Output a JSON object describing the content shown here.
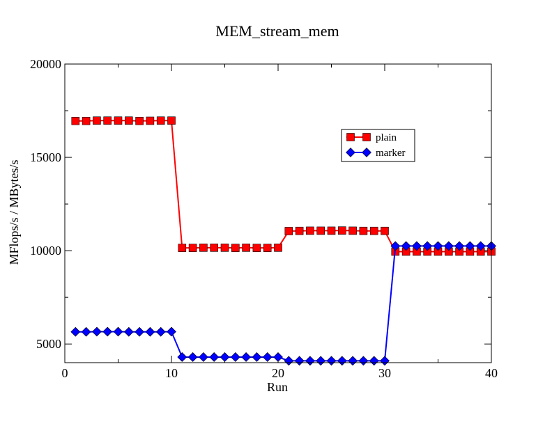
{
  "chart_data": {
    "type": "line",
    "title": "MEM_stream_mem",
    "xlabel": "Run",
    "ylabel": "MFlops/s / MBytes/s",
    "xlim": [
      0,
      40
    ],
    "ylim": [
      4000,
      20000
    ],
    "x_ticks": [
      0,
      10,
      20,
      30,
      40
    ],
    "y_ticks": [
      5000,
      10000,
      15000,
      20000
    ],
    "x_tick_labels": [
      "0",
      "10",
      "20",
      "30",
      "40"
    ],
    "y_tick_labels": [
      "5000",
      "10000",
      "15000",
      "20000"
    ],
    "legend_position": "upper-right-inside",
    "grid": false,
    "x": [
      1,
      2,
      3,
      4,
      5,
      6,
      7,
      8,
      9,
      10,
      11,
      12,
      13,
      14,
      15,
      16,
      17,
      18,
      19,
      20,
      21,
      22,
      23,
      24,
      25,
      26,
      27,
      28,
      29,
      30,
      31,
      32,
      33,
      34,
      35,
      36,
      37,
      38,
      39,
      40
    ],
    "series": [
      {
        "name": "plain",
        "color": "#ff0000",
        "marker": "square",
        "values": [
          16950,
          16950,
          16970,
          16970,
          16970,
          16970,
          16950,
          16960,
          16970,
          16970,
          10150,
          10150,
          10160,
          10160,
          10160,
          10150,
          10160,
          10150,
          10150,
          10160,
          11050,
          11060,
          11070,
          11070,
          11070,
          11080,
          11070,
          11060,
          11060,
          11060,
          9950,
          9950,
          9950,
          9950,
          9950,
          9950,
          9950,
          9950,
          9950,
          9950
        ]
      },
      {
        "name": "marker",
        "color": "#0000ff",
        "marker": "diamond",
        "values": [
          5650,
          5650,
          5660,
          5660,
          5660,
          5650,
          5650,
          5650,
          5650,
          5660,
          4300,
          4300,
          4300,
          4300,
          4300,
          4300,
          4300,
          4300,
          4300,
          4300,
          4100,
          4100,
          4100,
          4100,
          4100,
          4100,
          4100,
          4100,
          4100,
          4100,
          10250,
          10250,
          10250,
          10250,
          10250,
          10250,
          10250,
          10250,
          10250,
          10250
        ]
      }
    ]
  }
}
